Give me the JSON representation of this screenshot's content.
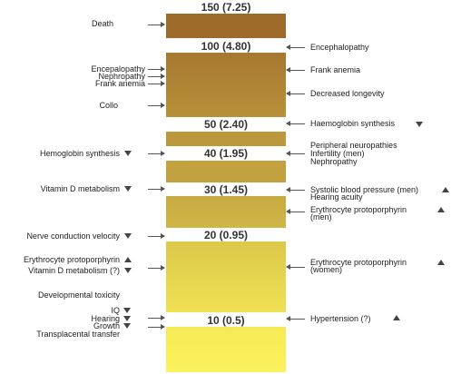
{
  "levels": [
    "150 (7.25)",
    "100 (4.80)",
    "50 (2.40)",
    "40 (1.95)",
    "30 (1.45)",
    "20 (0.95)",
    "10 (0.5)"
  ],
  "left_labels": {
    "death": "Death",
    "encepalopathy": "Encepalopathy",
    "nephropathy": "Nephropathy",
    "frank_anemia": "Frank anemia",
    "collo": "Collo",
    "hemoglobin_synthesis": "Hemoglobin synthesis",
    "vitamin_d_metabolism": "Vitamin D metabolism",
    "nerve_conduction_velocity": "Nerve conduction velocity",
    "erythrocyte_protoporphyrin": "Erythrocyte protoporphyrin",
    "vitamin_d_metabolism_q": "Vitamin D metabolism (?)",
    "developmental_toxicity": "Developmental toxicity",
    "iq": "IQ",
    "hearing": "Hearing",
    "growth": "Growth",
    "transplacental_transfer": "Transplacental transfer"
  },
  "right_labels": {
    "encephalopathy": "Encephalopathy",
    "frank_anemia": "Frank anemia",
    "decreased_longevity": "Decreased longevity",
    "haemoglobin_synthesis": "Haemoglobin synthesis",
    "peripheral_neuropathies": "Peripheral neuropathies",
    "infertility_men": "Infertility (men)",
    "nephropathy": "Nephropathy",
    "systolic_bp_men": "Systolic blood pressure (men)",
    "hearing_acuity": "Hearing acuity",
    "erythrocyte_protoporphyrin_men_1": "Erythrocyte protoporphyrin",
    "erythrocyte_protoporphyrin_men_2": "(men)",
    "erythrocyte_protoporphyrin_women_1": "Erythrocyte protoporphyrin",
    "erythrocyte_protoporphyrin_women_2": "(women)",
    "hypertension": "Hypertension (?)"
  },
  "colors": {
    "bar_top": "#9e6a2a",
    "bar_mid": "#c4a13e",
    "bar_bottom": "#faf25e",
    "background": "#ffffff",
    "arrow": "#555555"
  }
}
